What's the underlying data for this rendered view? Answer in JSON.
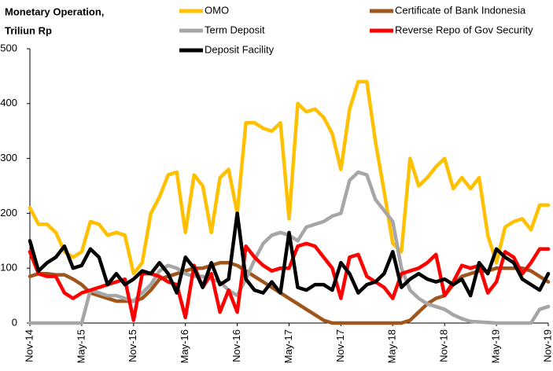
{
  "chart_data": {
    "type": "line",
    "title": "Monetary Operation,",
    "subtitle": "Triliun Rp",
    "categories": [
      "Nov-14",
      null,
      null,
      null,
      null,
      null,
      "May-15",
      null,
      null,
      null,
      null,
      null,
      "Nov-15",
      null,
      null,
      null,
      null,
      null,
      "May-16",
      null,
      null,
      null,
      null,
      null,
      "Nov-16",
      null,
      null,
      null,
      null,
      null,
      "May-17",
      null,
      null,
      null,
      null,
      null,
      "Nov-17",
      null,
      null,
      null,
      null,
      null,
      "May-18",
      null,
      null,
      null,
      null,
      null,
      "Nov-18",
      null,
      null,
      null,
      null,
      null,
      "May-19",
      null,
      null,
      null,
      null,
      null,
      "Nov-19"
    ],
    "series": [
      {
        "name": "OMO",
        "color": "#ffc000",
        "values": [
          210,
          180,
          180,
          165,
          130,
          120,
          130,
          185,
          180,
          160,
          165,
          160,
          90,
          110,
          200,
          230,
          270,
          275,
          165,
          270,
          250,
          165,
          265,
          280,
          200,
          365,
          365,
          355,
          350,
          365,
          190,
          400,
          385,
          390,
          375,
          345,
          280,
          390,
          440,
          440,
          330,
          240,
          145,
          130,
          300,
          250,
          265,
          285,
          300,
          245,
          265,
          245,
          265,
          160,
          110,
          175,
          185,
          190,
          170,
          215,
          215
        ]
      },
      {
        "name": "Certificate of Bank Indonesia",
        "color": "#a0561b",
        "values": [
          85,
          90,
          90,
          88,
          88,
          80,
          70,
          55,
          50,
          45,
          40,
          40,
          40,
          45,
          60,
          80,
          85,
          90,
          95,
          100,
          100,
          105,
          110,
          110,
          105,
          95,
          85,
          75,
          65,
          55,
          45,
          35,
          25,
          15,
          5,
          0,
          0,
          0,
          0,
          0,
          0,
          0,
          0,
          0,
          5,
          20,
          35,
          45,
          50,
          70,
          85,
          90,
          95,
          95,
          100,
          100,
          100,
          100,
          95,
          85,
          75
        ]
      },
      {
        "name": "Term Deposit",
        "color": "#a6a6a6",
        "values": [
          0,
          0,
          0,
          0,
          0,
          0,
          0,
          60,
          55,
          50,
          50,
          45,
          40,
          55,
          70,
          95,
          105,
          100,
          90,
          85,
          85,
          80,
          75,
          60,
          50,
          80,
          115,
          145,
          160,
          165,
          160,
          150,
          175,
          180,
          185,
          195,
          200,
          260,
          275,
          270,
          225,
          205,
          185,
          100,
          60,
          45,
          35,
          30,
          25,
          15,
          8,
          3,
          2,
          1,
          0,
          0,
          0,
          0,
          0,
          25,
          30
        ]
      },
      {
        "name": "Reverse Repo of Gov Security",
        "color": "#ff0000",
        "values": [
          130,
          90,
          85,
          85,
          55,
          45,
          55,
          60,
          65,
          70,
          75,
          80,
          5,
          90,
          90,
          85,
          75,
          70,
          10,
          105,
          65,
          90,
          20,
          60,
          20,
          140,
          120,
          105,
          95,
          100,
          100,
          140,
          145,
          140,
          120,
          100,
          45,
          120,
          125,
          85,
          75,
          65,
          45,
          90,
          95,
          100,
          110,
          125,
          50,
          75,
          105,
          100,
          105,
          55,
          75,
          130,
          120,
          90,
          110,
          135,
          135
        ]
      },
      {
        "name": "Deposit Facility",
        "color": "#000000",
        "values": [
          150,
          95,
          110,
          120,
          140,
          100,
          105,
          135,
          120,
          70,
          90,
          70,
          80,
          95,
          90,
          110,
          90,
          55,
          120,
          100,
          65,
          110,
          70,
          80,
          200,
          80,
          60,
          55,
          75,
          55,
          165,
          65,
          60,
          70,
          70,
          60,
          110,
          90,
          55,
          70,
          75,
          90,
          130,
          65,
          80,
          90,
          80,
          75,
          80,
          70,
          80,
          50,
          110,
          90,
          135,
          120,
          110,
          80,
          70,
          60,
          90
        ]
      }
    ],
    "ylim": [
      0,
      500
    ],
    "yticks": [
      0,
      100,
      200,
      300,
      400,
      500
    ],
    "grid": false
  }
}
